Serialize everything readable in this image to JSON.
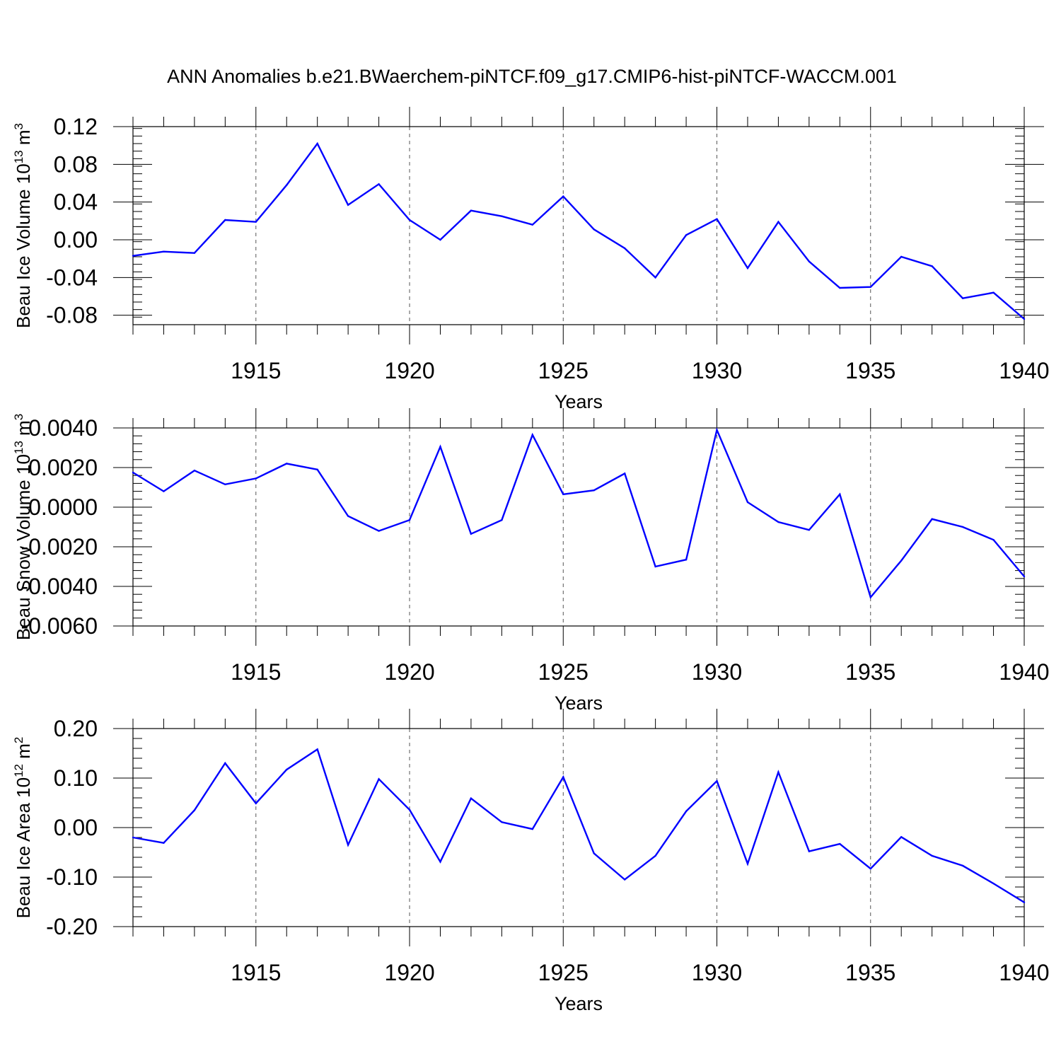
{
  "title": "ANN Anomalies b.e21.BWaerchem-piNTCF.f09_g17.CMIP6-hist-piNTCF-WACCM.001",
  "colors": {
    "line": "#0000ff",
    "axis": "#000000",
    "grid": "#555555",
    "background": "#ffffff"
  },
  "chart_data": [
    {
      "type": "line",
      "name": "ice-volume",
      "ylabel": {
        "prefix": "Beau Ice Volume 10",
        "exp": "13",
        "unit": " m",
        "unit_exp": "3"
      },
      "xlabel": "Years",
      "xlim": [
        1911,
        1940
      ],
      "ylim": [
        -0.09,
        0.12
      ],
      "yticks": [
        0.12,
        0.08,
        0.04,
        0.0,
        -0.04,
        -0.08
      ],
      "ytick_labels": [
        "0.12",
        "0.08",
        "0.04",
        "0.00",
        "-0.04",
        "-0.08"
      ],
      "yminor_step": 0.008,
      "xticks": [
        1915,
        1920,
        1925,
        1930,
        1935,
        1940
      ],
      "xtick_labels": [
        "1915",
        "1920",
        "1925",
        "1930",
        "1935",
        "1940"
      ],
      "grid": "x-dashed",
      "x": [
        1911,
        1912,
        1913,
        1914,
        1915,
        1916,
        1917,
        1918,
        1919,
        1920,
        1921,
        1922,
        1923,
        1924,
        1925,
        1926,
        1927,
        1928,
        1929,
        1930,
        1931,
        1932,
        1933,
        1934,
        1935,
        1936,
        1937,
        1938,
        1939,
        1940
      ],
      "values": [
        -0.017,
        -0.0125,
        -0.014,
        0.021,
        0.019,
        0.058,
        0.102,
        0.037,
        0.059,
        0.021,
        0.0,
        0.031,
        0.025,
        0.016,
        0.046,
        0.011,
        -0.009,
        -0.04,
        0.005,
        0.022,
        -0.03,
        0.019,
        -0.023,
        -0.051,
        -0.05,
        -0.018,
        -0.028,
        -0.062,
        -0.056,
        -0.084
      ]
    },
    {
      "type": "line",
      "name": "snow-volume",
      "ylabel": {
        "prefix": "Beau Snow Volume 10",
        "exp": "13",
        "unit": " m",
        "unit_exp": "3"
      },
      "xlabel": "Years",
      "xlim": [
        1911,
        1940
      ],
      "ylim": [
        -0.006,
        0.004
      ],
      "yticks": [
        0.004,
        0.002,
        0.0,
        -0.002,
        -0.004,
        -0.006
      ],
      "ytick_labels": [
        "0.0040",
        "0.0020",
        "0.0000",
        "-0.0020",
        "-0.0040",
        "-0.0060"
      ],
      "yminor_step": 0.0004,
      "xticks": [
        1915,
        1920,
        1925,
        1930,
        1935,
        1940
      ],
      "xtick_labels": [
        "1915",
        "1920",
        "1925",
        "1930",
        "1935",
        "1940"
      ],
      "grid": "x-dashed",
      "x": [
        1911,
        1912,
        1913,
        1914,
        1915,
        1916,
        1917,
        1918,
        1919,
        1920,
        1921,
        1922,
        1923,
        1924,
        1925,
        1926,
        1927,
        1928,
        1929,
        1930,
        1931,
        1932,
        1933,
        1934,
        1935,
        1936,
        1937,
        1938,
        1939,
        1940
      ],
      "values": [
        0.00175,
        0.0008,
        0.00185,
        0.00115,
        0.00145,
        0.0022,
        0.0019,
        -0.00045,
        -0.0012,
        -0.00065,
        0.00305,
        -0.00135,
        -0.00065,
        0.00365,
        0.00065,
        0.00085,
        0.0017,
        -0.003,
        -0.00265,
        0.0039,
        0.00025,
        -0.00075,
        -0.00115,
        0.00065,
        -0.00455,
        -0.0027,
        -0.0006,
        -0.001,
        -0.00165,
        -0.0035
      ]
    },
    {
      "type": "line",
      "name": "ice-area",
      "ylabel": {
        "prefix": "Beau Ice Area 10",
        "exp": "12",
        "unit": " m",
        "unit_exp": "2"
      },
      "xlabel": "Years",
      "xlim": [
        1911,
        1940
      ],
      "ylim": [
        -0.2,
        0.2
      ],
      "yticks": [
        0.2,
        0.1,
        0.0,
        -0.1,
        -0.2
      ],
      "ytick_labels": [
        "0.20",
        "0.10",
        "0.00",
        "-0.10",
        "-0.20"
      ],
      "yminor_step": 0.02,
      "xticks": [
        1915,
        1920,
        1925,
        1930,
        1935,
        1940
      ],
      "xtick_labels": [
        "1915",
        "1920",
        "1925",
        "1930",
        "1935",
        "1940"
      ],
      "grid": "x-dashed",
      "x": [
        1911,
        1912,
        1913,
        1914,
        1915,
        1916,
        1917,
        1918,
        1919,
        1920,
        1921,
        1922,
        1923,
        1924,
        1925,
        1926,
        1927,
        1928,
        1929,
        1930,
        1931,
        1932,
        1933,
        1934,
        1935,
        1936,
        1937,
        1938,
        1939,
        1940
      ],
      "values": [
        -0.02,
        -0.031,
        0.035,
        0.13,
        0.049,
        0.117,
        0.158,
        -0.035,
        0.098,
        0.036,
        -0.069,
        0.059,
        0.011,
        -0.003,
        0.102,
        -0.052,
        -0.105,
        -0.057,
        0.033,
        0.094,
        -0.073,
        0.112,
        -0.048,
        -0.033,
        -0.083,
        -0.019,
        -0.057,
        -0.077,
        -0.113,
        -0.151
      ]
    }
  ]
}
